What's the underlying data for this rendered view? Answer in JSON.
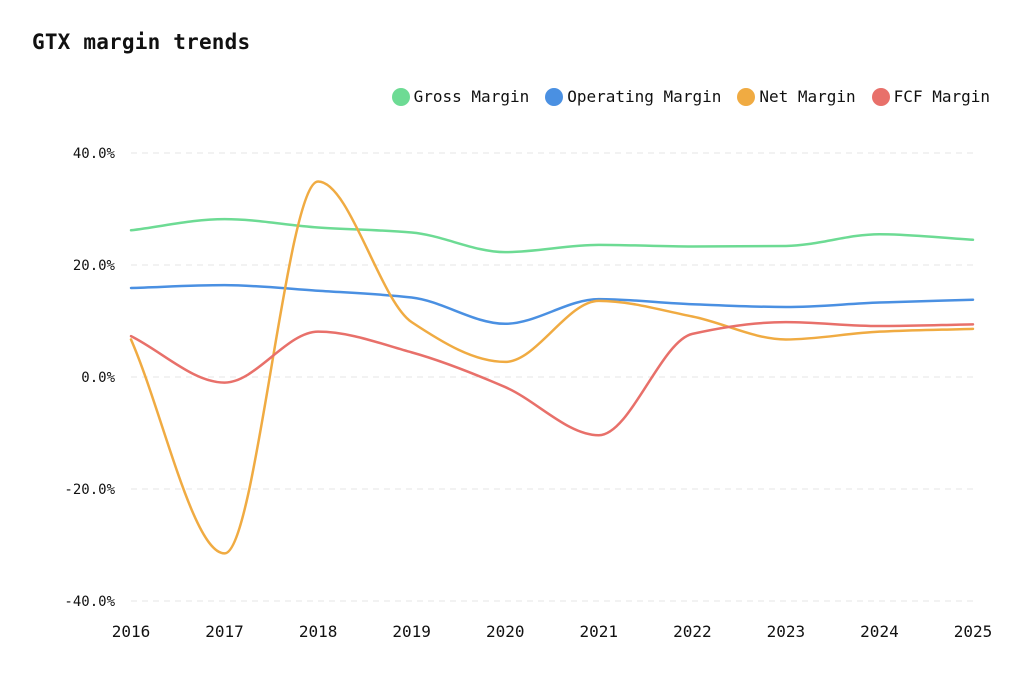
{
  "chart_data": {
    "type": "line",
    "title": "GTX margin trends",
    "xlabel": "",
    "ylabel": "",
    "categories": [
      "2016",
      "2017",
      "2018",
      "2019",
      "2020",
      "2021",
      "2022",
      "2023",
      "2024",
      "2025"
    ],
    "ylim": [
      -40,
      40
    ],
    "yticks": [
      40,
      20,
      0,
      -20,
      -40
    ],
    "ytick_labels": [
      "40.0%",
      "20.0%",
      "0.0%",
      "-20.0%",
      "-40.0%"
    ],
    "grid": "horizontal dashed",
    "legend_position": "top-right",
    "series": [
      {
        "name": "Gross Margin",
        "color": "#6ddb94",
        "values": [
          26.2,
          28.2,
          26.7,
          25.8,
          22.3,
          23.6,
          23.3,
          23.4,
          25.5,
          24.5
        ]
      },
      {
        "name": "Operating Margin",
        "color": "#4a90e2",
        "values": [
          15.9,
          16.4,
          15.4,
          14.2,
          9.5,
          13.9,
          13.0,
          12.5,
          13.3,
          13.8
        ]
      },
      {
        "name": "Net Margin",
        "color": "#f0ab42",
        "values": [
          6.7,
          -31.5,
          34.9,
          9.8,
          2.7,
          13.6,
          10.8,
          6.7,
          8.1,
          8.6
        ]
      },
      {
        "name": "FCF Margin",
        "color": "#e8706a",
        "values": [
          7.3,
          -1.0,
          8.1,
          4.4,
          -1.8,
          -10.4,
          7.7,
          9.8,
          9.1,
          9.4
        ]
      }
    ]
  }
}
